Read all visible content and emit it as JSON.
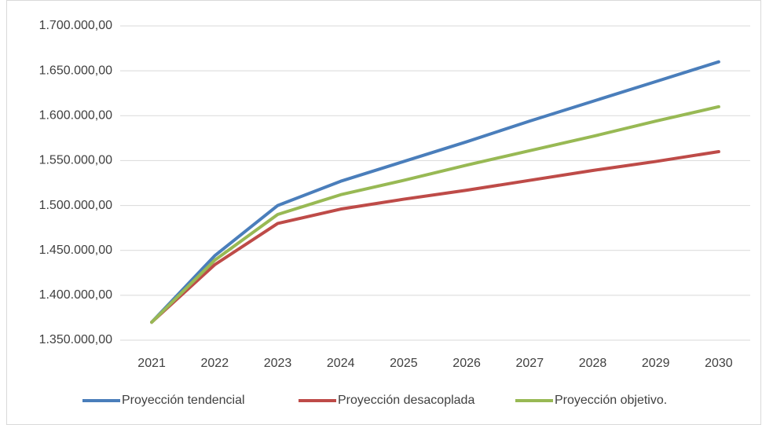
{
  "chart_data": {
    "type": "line",
    "categories": [
      "2021",
      "2022",
      "2023",
      "2024",
      "2025",
      "2026",
      "2027",
      "2028",
      "2029",
      "2030"
    ],
    "series": [
      {
        "name": "Proyección tendencial",
        "color": "#4a7ebb",
        "values": [
          1370000,
          1444000,
          1500000,
          1527000,
          1549000,
          1571000,
          1594000,
          1616000,
          1638000,
          1660000
        ]
      },
      {
        "name": "Proyección desacoplada",
        "color": "#be4b48",
        "values": [
          1370000,
          1434000,
          1480000,
          1496000,
          1507000,
          1517000,
          1528000,
          1539000,
          1549000,
          1560000
        ]
      },
      {
        "name": "Proyección objetivo.",
        "color": "#98b954",
        "values": [
          1370000,
          1439000,
          1490000,
          1512000,
          1528000,
          1545000,
          1561000,
          1577000,
          1594000,
          1610000
        ]
      }
    ],
    "ylim": [
      1350000,
      1700000
    ],
    "yticks": [
      {
        "value": 1350000,
        "label": "1.350.000,00"
      },
      {
        "value": 1400000,
        "label": "1.400.000,00"
      },
      {
        "value": 1450000,
        "label": "1.450.000,00"
      },
      {
        "value": 1500000,
        "label": "1.500.000,00"
      },
      {
        "value": 1550000,
        "label": "1.550.000,00"
      },
      {
        "value": 1600000,
        "label": "1.600.000,00"
      },
      {
        "value": 1650000,
        "label": "1.650.000,00"
      },
      {
        "value": 1700000,
        "label": "1.700.000,00"
      }
    ],
    "grid": true,
    "legend": "bottom"
  }
}
